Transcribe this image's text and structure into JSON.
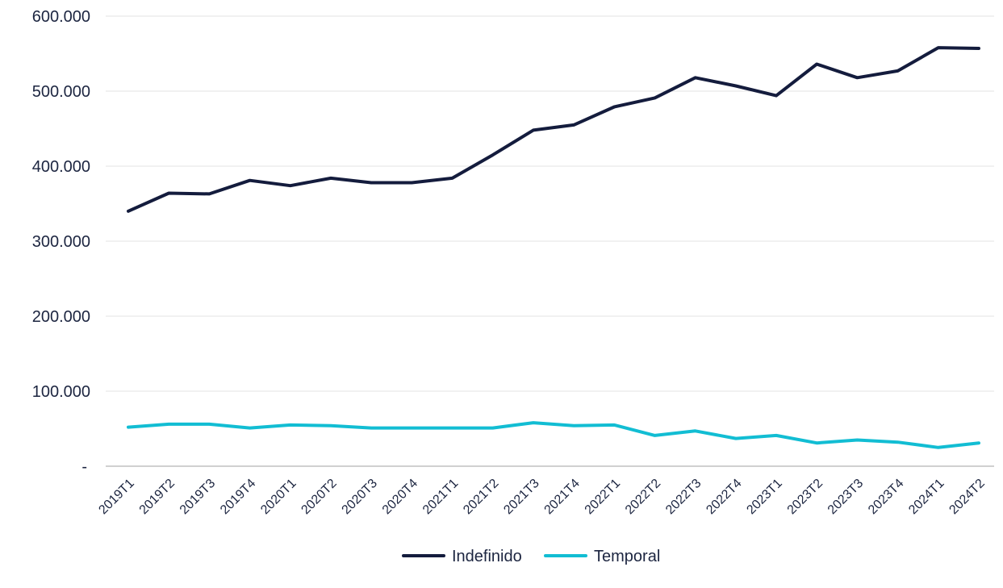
{
  "chart_data": {
    "type": "line",
    "categories": [
      "2019T1",
      "2019T2",
      "2019T3",
      "2019T4",
      "2020T1",
      "2020T2",
      "2020T3",
      "2020T4",
      "2021T1",
      "2021T2",
      "2021T3",
      "2021T4",
      "2022T1",
      "2022T2",
      "2022T3",
      "2022T4",
      "2023T1",
      "2023T2",
      "2023T3",
      "2023T4",
      "2024T1",
      "2024T2"
    ],
    "series": [
      {
        "name": "Indefinido",
        "color": "#141c3d",
        "values": [
          340000,
          364000,
          363000,
          381000,
          374000,
          384000,
          378000,
          378000,
          384000,
          415000,
          448000,
          455000,
          479000,
          491000,
          518000,
          507000,
          494000,
          536000,
          518000,
          527000,
          558000,
          557000
        ]
      },
      {
        "name": "Temporal",
        "color": "#12bdd3",
        "values": [
          52000,
          56000,
          56000,
          51000,
          55000,
          54000,
          51000,
          51000,
          51000,
          51000,
          58000,
          54000,
          55000,
          41000,
          47000,
          37000,
          41000,
          31000,
          35000,
          32000,
          25000,
          31000
        ]
      }
    ],
    "y_ticks": [
      {
        "value": 0,
        "label": "-"
      },
      {
        "value": 100000,
        "label": "100.000"
      },
      {
        "value": 200000,
        "label": "200.000"
      },
      {
        "value": 300000,
        "label": "300.000"
      },
      {
        "value": 400000,
        "label": "400.000"
      },
      {
        "value": 500000,
        "label": "500.000"
      },
      {
        "value": 600000,
        "label": "600.000"
      }
    ],
    "ylim": [
      0,
      600000
    ],
    "grid": true,
    "legend_position": "bottom-center",
    "axis_color": "#d0d0d0",
    "grid_color": "#e3e3e3",
    "text_color": "#1c2540"
  }
}
